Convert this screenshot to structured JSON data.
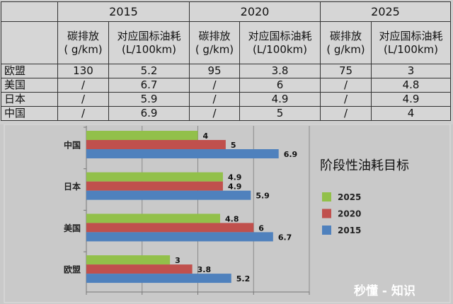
{
  "table": {
    "years": [
      "2015",
      "2020",
      "2025"
    ],
    "sub_headers": [
      {
        "line1": "碳排放",
        "line2": "( g/km)"
      },
      {
        "line1": "对应国标油耗",
        "line2": "(L/100km)"
      }
    ],
    "rows": [
      {
        "region": "欧盟",
        "cells": [
          "130",
          "5.2",
          "95",
          "3.8",
          "75",
          "3"
        ]
      },
      {
        "region": "美国",
        "cells": [
          "/",
          "6.7",
          "/",
          "6",
          "/",
          "4.8"
        ]
      },
      {
        "region": "日本",
        "cells": [
          "/",
          "5.9",
          "/",
          "4.9",
          "/",
          "4.9"
        ]
      },
      {
        "region": "中国",
        "cells": [
          "/",
          "6.9",
          "/",
          "5",
          "/",
          "4"
        ]
      }
    ]
  },
  "chart_data": {
    "type": "bar",
    "orientation": "horizontal",
    "title": "阶段性油耗目标",
    "categories": [
      "中国",
      "日本",
      "美国",
      "欧盟"
    ],
    "series": [
      {
        "name": "2025",
        "color": "#92c04a",
        "values": [
          4,
          4.9,
          4.8,
          3
        ]
      },
      {
        "name": "2020",
        "color": "#c0504d",
        "values": [
          5,
          4.9,
          6,
          3.8
        ]
      },
      {
        "name": "2015",
        "color": "#4f81bd",
        "values": [
          6.9,
          5.9,
          6.7,
          5.2
        ]
      }
    ],
    "xlim": [
      0,
      8
    ],
    "grid": true,
    "x_tick_labels_shown": false,
    "legend_position": "right"
  },
  "watermark": "秒懂 - 知识"
}
